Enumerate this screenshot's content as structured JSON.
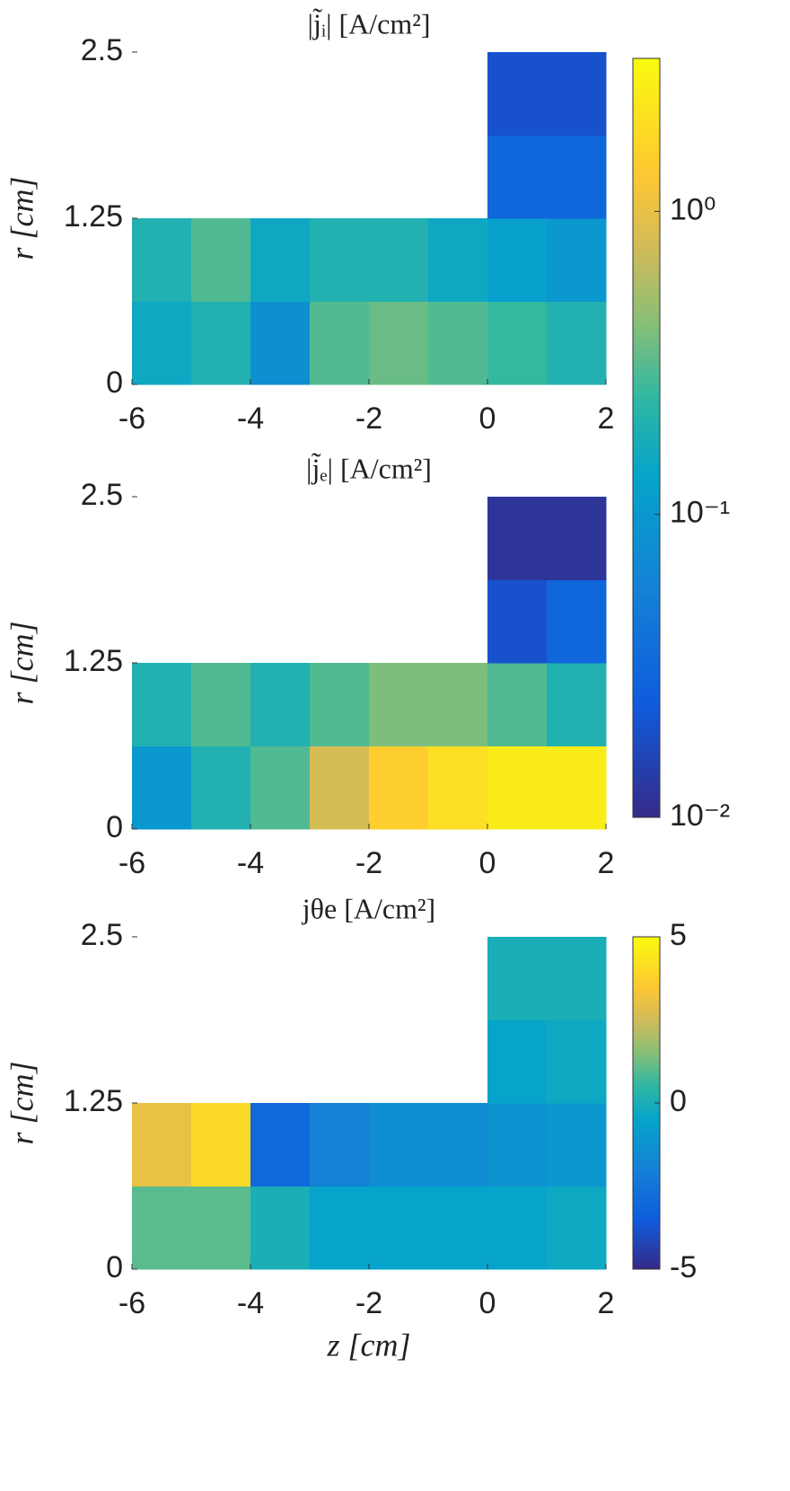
{
  "chart_data": [
    {
      "type": "heatmap",
      "title": "|j̃ᵢ| [A/cm²]",
      "ylabel": "r [cm]",
      "x": [
        -5.5,
        -4.5,
        -3.5,
        -2.5,
        -1.5,
        -0.5,
        0.5,
        1.5
      ],
      "y": [
        0.3125,
        0.9375,
        1.5625,
        2.1875
      ],
      "z": [
        [
          0.15,
          0.2,
          0.08,
          0.3,
          0.35,
          0.3,
          0.25,
          0.2
        ],
        [
          0.2,
          0.3,
          0.15,
          0.2,
          0.2,
          0.15,
          0.12,
          0.1
        ],
        [
          null,
          null,
          null,
          null,
          null,
          null,
          0.03,
          0.03
        ],
        [
          null,
          null,
          null,
          null,
          null,
          null,
          0.02,
          0.02
        ]
      ],
      "xlim": [
        -6,
        2
      ],
      "xticks": [
        -6,
        -4,
        -2,
        0,
        2
      ],
      "ylim": [
        0,
        2.5
      ],
      "yticks": [
        0,
        1.25,
        2.5
      ],
      "log_scale": true,
      "clim": [
        0.01,
        3.2
      ],
      "cticks": [
        {
          "value": 0.01,
          "label": "10⁻²"
        },
        {
          "value": 0.1,
          "label": "10⁻¹"
        },
        {
          "value": 1,
          "label": "10⁰"
        }
      ]
    },
    {
      "type": "heatmap",
      "title": "|j̃ₑ| [A/cm²]",
      "ylabel": "r [cm]",
      "x": [
        -5.5,
        -4.5,
        -3.5,
        -2.5,
        -1.5,
        -0.5,
        0.5,
        1.5
      ],
      "y": [
        0.3125,
        0.9375,
        1.5625,
        2.1875
      ],
      "z": [
        [
          0.1,
          0.2,
          0.3,
          0.8,
          1.5,
          2,
          2.5,
          2.5
        ],
        [
          0.2,
          0.3,
          0.2,
          0.3,
          0.4,
          0.4,
          0.3,
          0.2
        ],
        [
          null,
          null,
          null,
          null,
          null,
          null,
          0.02,
          0.03
        ],
        [
          null,
          null,
          null,
          null,
          null,
          null,
          0.012,
          0.012
        ]
      ],
      "xlim": [
        -6,
        2
      ],
      "xticks": [
        -6,
        -4,
        -2,
        0,
        2
      ],
      "ylim": [
        0,
        2.5
      ],
      "yticks": [
        0,
        1.25,
        2.5
      ],
      "log_scale": true,
      "clim": [
        0.01,
        3.2
      ]
    },
    {
      "type": "heatmap",
      "title": "jθe [A/cm²]",
      "ylabel": "r [cm]",
      "xlabel": "z [cm]",
      "x": [
        -5.5,
        -4.5,
        -3.5,
        -2.5,
        -1.5,
        -0.5,
        0.5,
        1.5
      ],
      "y": [
        0.3125,
        0.9375,
        1.5625,
        2.1875
      ],
      "z": [
        [
          1,
          1,
          0,
          -0.5,
          -0.5,
          -0.5,
          -0.5,
          -0.3
        ],
        [
          3,
          4,
          -3,
          -2,
          -1.5,
          -1.5,
          -1.2,
          -1
        ],
        [
          null,
          null,
          null,
          null,
          null,
          null,
          -0.5,
          -0.3
        ],
        [
          null,
          null,
          null,
          null,
          null,
          null,
          0,
          0
        ]
      ],
      "xlim": [
        -6,
        2
      ],
      "xticks": [
        -6,
        -4,
        -2,
        0,
        2
      ],
      "ylim": [
        0,
        2.5
      ],
      "yticks": [
        0,
        1.25,
        2.5
      ],
      "log_scale": false,
      "clim": [
        -5,
        5
      ],
      "cticks": [
        -5,
        0,
        5
      ]
    }
  ]
}
